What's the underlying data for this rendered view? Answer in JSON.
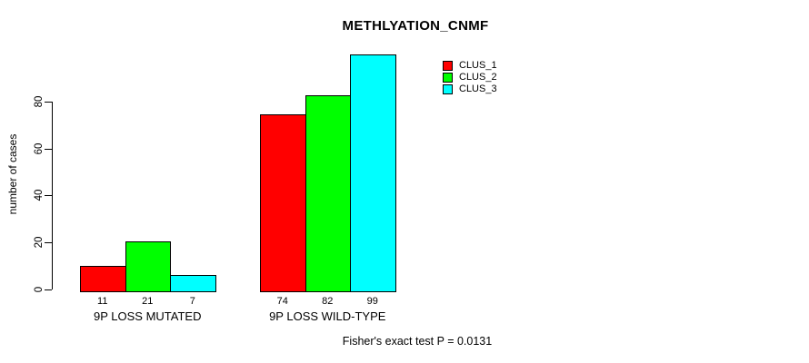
{
  "page": {
    "background": "#ffffff",
    "text_color": "#000000"
  },
  "chart_data": {
    "type": "bar",
    "title": "METHLYATION_CNMF",
    "xlabel": "",
    "ylabel": "number of cases",
    "footer": "Fisher's exact test P = 0.0131",
    "categories": [
      "9P LOSS MUTATED",
      "9P LOSS WILD-TYPE"
    ],
    "series": [
      {
        "name": "CLUS_1",
        "color": "#FF0000",
        "values": [
          11,
          74
        ]
      },
      {
        "name": "CLUS_2",
        "color": "#00FF00",
        "values": [
          21,
          82
        ]
      },
      {
        "name": "CLUS_3",
        "color": "#00FFFF",
        "values": [
          7,
          99
        ]
      }
    ],
    "bar_value_labels": [
      [
        11,
        21,
        7
      ],
      [
        74,
        82,
        99
      ]
    ],
    "yticks": [
      0,
      20,
      40,
      60,
      80
    ],
    "ylim": [
      0,
      100
    ],
    "grid": false,
    "legend_position": "top-right-outside",
    "bar_border_color": "#000000",
    "axis_color": "#000000"
  }
}
